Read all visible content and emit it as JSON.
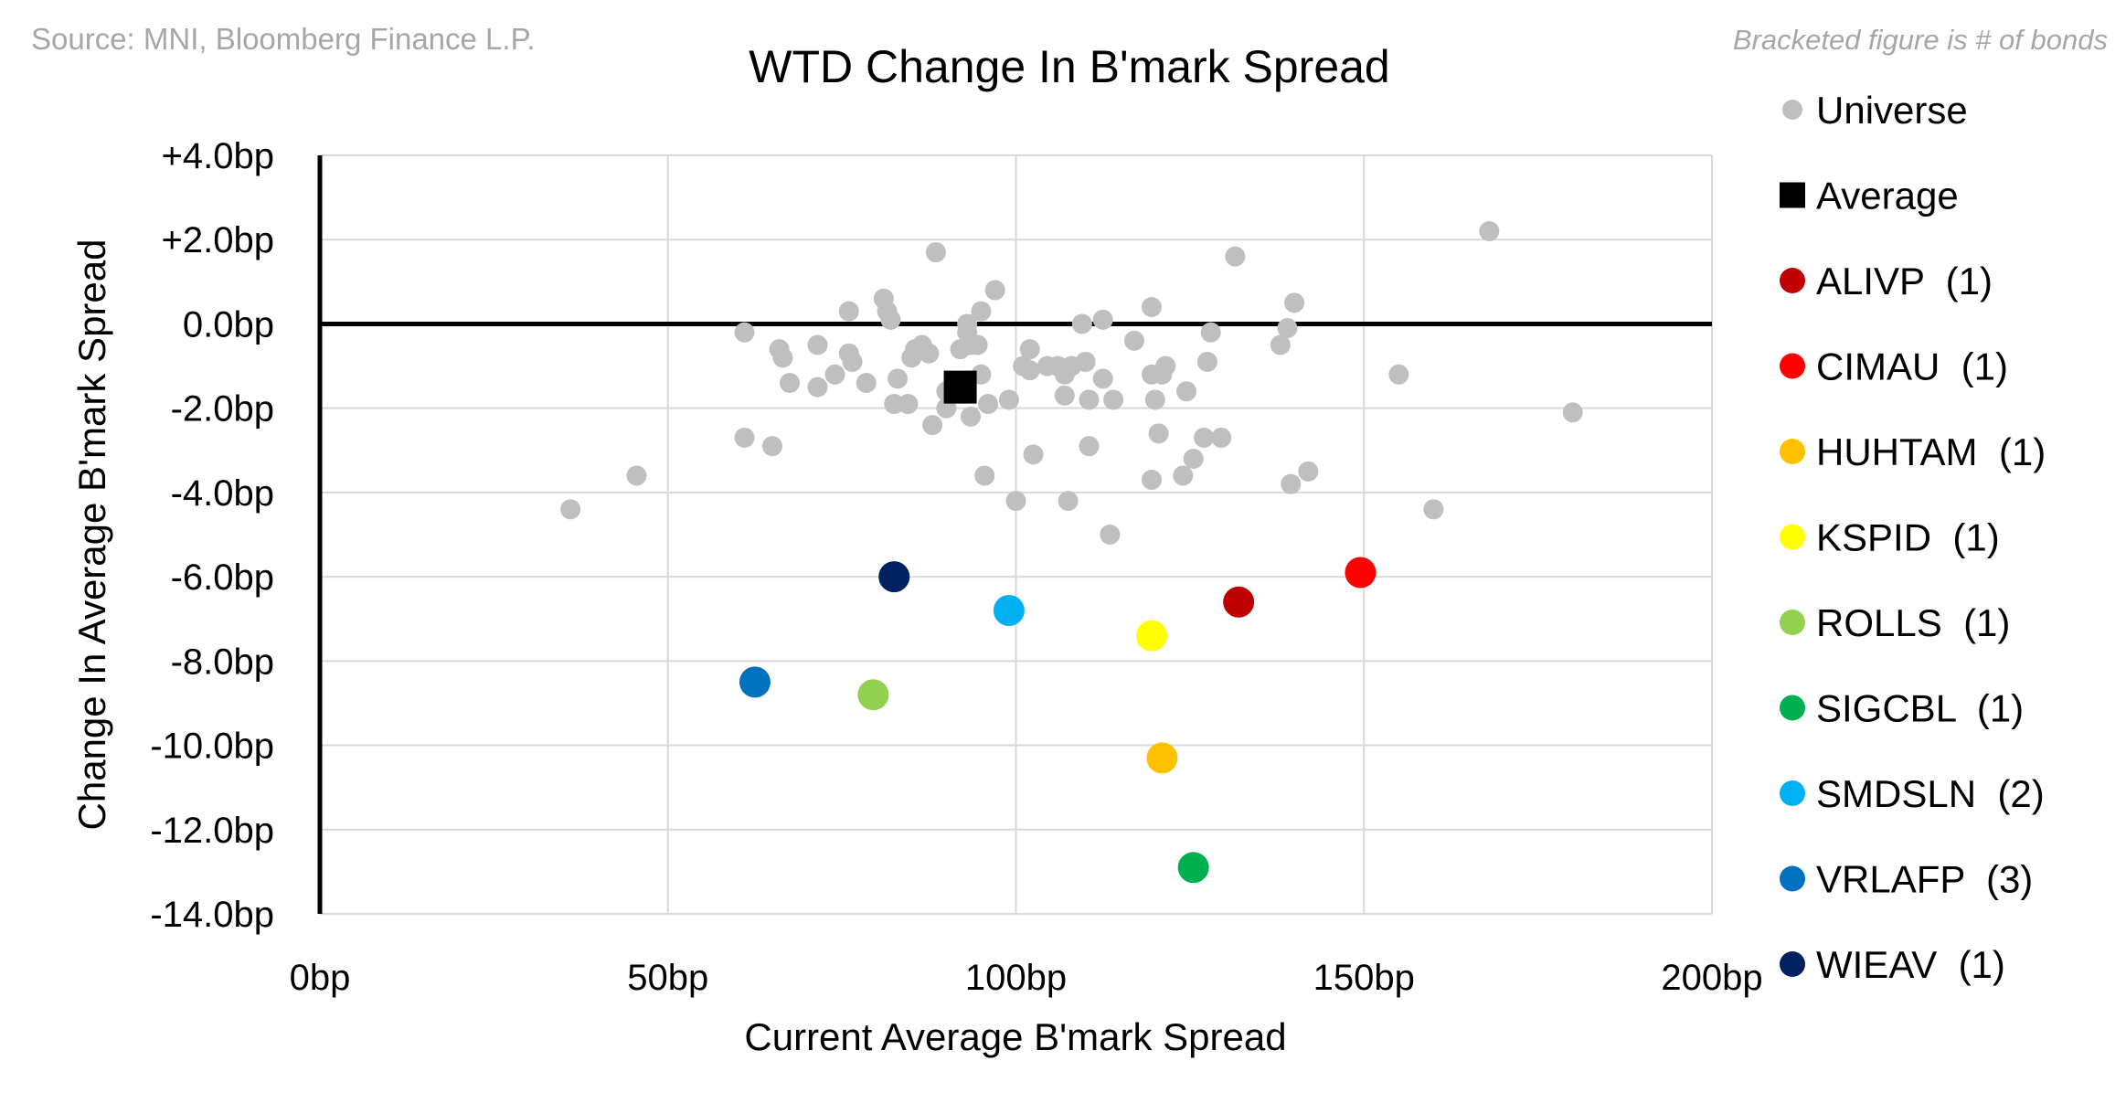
{
  "source": "Source: MNI, Bloomberg Finance L.P.",
  "note": "Bracketed figure is # of bonds",
  "chart_data": {
    "type": "scatter",
    "title": "WTD Change In B'mark Spread",
    "xlabel": "Current Average B'mark Spread",
    "ylabel": "Change In Average B'mark Spread",
    "xlim": [
      0,
      200
    ],
    "ylim": [
      -14,
      4
    ],
    "x_ticks": [
      {
        "value": 0,
        "label": "0bp"
      },
      {
        "value": 50,
        "label": "50bp"
      },
      {
        "value": 100,
        "label": "100bp"
      },
      {
        "value": 150,
        "label": "150bp"
      },
      {
        "value": 200,
        "label": "200bp"
      }
    ],
    "y_ticks": [
      {
        "value": 4,
        "label": "+4.0bp",
        "color": "#ff0000"
      },
      {
        "value": 2,
        "label": "+2.0bp",
        "color": "#ff0000"
      },
      {
        "value": 0,
        "label": "0.0bp",
        "color": "#000000"
      },
      {
        "value": -2,
        "label": "-2.0bp",
        "color": "#8fbf2f"
      },
      {
        "value": -4,
        "label": "-4.0bp",
        "color": "#8fbf2f"
      },
      {
        "value": -6,
        "label": "-6.0bp",
        "color": "#8fbf2f"
      },
      {
        "value": -8,
        "label": "-8.0bp",
        "color": "#8fbf2f"
      },
      {
        "value": -10,
        "label": "-10.0bp",
        "color": "#8fbf2f"
      },
      {
        "value": -12,
        "label": "-12.0bp",
        "color": "#8fbf2f"
      },
      {
        "value": -14,
        "label": "-14.0bp",
        "color": "#8fbf2f"
      }
    ],
    "grid": true,
    "legend_position": "right",
    "series": [
      {
        "name": "Universe",
        "marker": "circle",
        "color": "#bfbfbf",
        "points": [
          [
            36,
            -4.4
          ],
          [
            45.5,
            -3.6
          ],
          [
            61,
            -2.7
          ],
          [
            61,
            -0.2
          ],
          [
            65,
            -2.9
          ],
          [
            66,
            -0.6
          ],
          [
            66.5,
            -0.8
          ],
          [
            67.5,
            -1.4
          ],
          [
            71.5,
            -0.5
          ],
          [
            71.5,
            -1.5
          ],
          [
            74,
            -1.2
          ],
          [
            76,
            0.3
          ],
          [
            76,
            -0.7
          ],
          [
            76.5,
            -0.9
          ],
          [
            78.5,
            -1.4
          ],
          [
            81,
            0.6
          ],
          [
            81.5,
            0.3
          ],
          [
            82,
            0.1
          ],
          [
            82.5,
            -1.9
          ],
          [
            83,
            -1.3
          ],
          [
            84.5,
            -1.9
          ],
          [
            85,
            -0.8
          ],
          [
            85.5,
            -0.6
          ],
          [
            86.5,
            -0.5
          ],
          [
            87.5,
            -0.7
          ],
          [
            88,
            -2.4
          ],
          [
            88.5,
            1.7
          ],
          [
            90,
            -2.0
          ],
          [
            90,
            -1.6
          ],
          [
            92,
            -0.6
          ],
          [
            93,
            -0.2
          ],
          [
            93,
            0.0
          ],
          [
            93.5,
            -0.5
          ],
          [
            93.5,
            -2.2
          ],
          [
            94.5,
            -0.5
          ],
          [
            95,
            -1.2
          ],
          [
            95,
            0.3
          ],
          [
            95.5,
            -3.6
          ],
          [
            96,
            -1.9
          ],
          [
            97,
            0.8
          ],
          [
            99,
            -1.8
          ],
          [
            100,
            -4.2
          ],
          [
            101,
            -1.0
          ],
          [
            102,
            -1.1
          ],
          [
            102,
            -0.6
          ],
          [
            102.5,
            -3.1
          ],
          [
            104.5,
            -1.0
          ],
          [
            106,
            -1.0
          ],
          [
            107,
            -1.2
          ],
          [
            107,
            -1.7
          ],
          [
            107.5,
            -4.2
          ],
          [
            108,
            -1.0
          ],
          [
            109.5,
            0.0
          ],
          [
            110,
            -0.9
          ],
          [
            110.5,
            -2.9
          ],
          [
            110.5,
            -1.8
          ],
          [
            112.5,
            0.1
          ],
          [
            112.5,
            -1.3
          ],
          [
            113.5,
            -5.0
          ],
          [
            114,
            -1.8
          ],
          [
            117,
            -0.4
          ],
          [
            119.5,
            0.4
          ],
          [
            119.5,
            -3.7
          ],
          [
            119.5,
            -1.2
          ],
          [
            120,
            -1.8
          ],
          [
            120.5,
            -2.6
          ],
          [
            121,
            -1.2
          ],
          [
            121.5,
            -1.0
          ],
          [
            124,
            -3.6
          ],
          [
            124.5,
            -1.6
          ],
          [
            125.5,
            -3.2
          ],
          [
            127,
            -2.7
          ],
          [
            127.5,
            -0.9
          ],
          [
            128,
            -0.2
          ],
          [
            129.5,
            -2.7
          ],
          [
            131.5,
            1.6
          ],
          [
            138,
            -0.5
          ],
          [
            139,
            -0.1
          ],
          [
            139.5,
            -3.8
          ],
          [
            140,
            0.5
          ],
          [
            142,
            -3.5
          ],
          [
            155,
            -1.2
          ],
          [
            160,
            -4.4
          ],
          [
            168,
            2.2
          ],
          [
            180,
            -2.1
          ]
        ]
      },
      {
        "name": "Average",
        "marker": "square",
        "color": "#000000",
        "points": [
          [
            92,
            -1.5
          ]
        ]
      },
      {
        "name": "ALIVP  (1)",
        "marker": "circle",
        "color": "#c00000",
        "points": [
          [
            132,
            -6.6
          ]
        ]
      },
      {
        "name": "CIMAU  (1)",
        "marker": "circle",
        "color": "#ff0000",
        "points": [
          [
            149.5,
            -5.9
          ]
        ]
      },
      {
        "name": "HUHTAM  (1)",
        "marker": "circle",
        "color": "#ffc000",
        "points": [
          [
            121,
            -10.3
          ]
        ]
      },
      {
        "name": "KSPID  (1)",
        "marker": "circle",
        "color": "#ffff00",
        "points": [
          [
            119.5,
            -7.4
          ]
        ]
      },
      {
        "name": "ROLLS  (1)",
        "marker": "circle",
        "color": "#92d050",
        "points": [
          [
            79.5,
            -8.8
          ]
        ]
      },
      {
        "name": "SIGCBL  (1)",
        "marker": "circle",
        "color": "#00b050",
        "points": [
          [
            125.5,
            -12.9
          ]
        ]
      },
      {
        "name": "SMDSLN  (2)",
        "marker": "circle",
        "color": "#00b0f0",
        "points": [
          [
            99,
            -6.8
          ]
        ]
      },
      {
        "name": "VRLAFP  (3)",
        "marker": "circle",
        "color": "#0070c0",
        "points": [
          [
            62.5,
            -8.5
          ]
        ]
      },
      {
        "name": "WIEAV  (1)",
        "marker": "circle",
        "color": "#002060",
        "points": [
          [
            82.5,
            -6.0
          ]
        ]
      }
    ]
  }
}
